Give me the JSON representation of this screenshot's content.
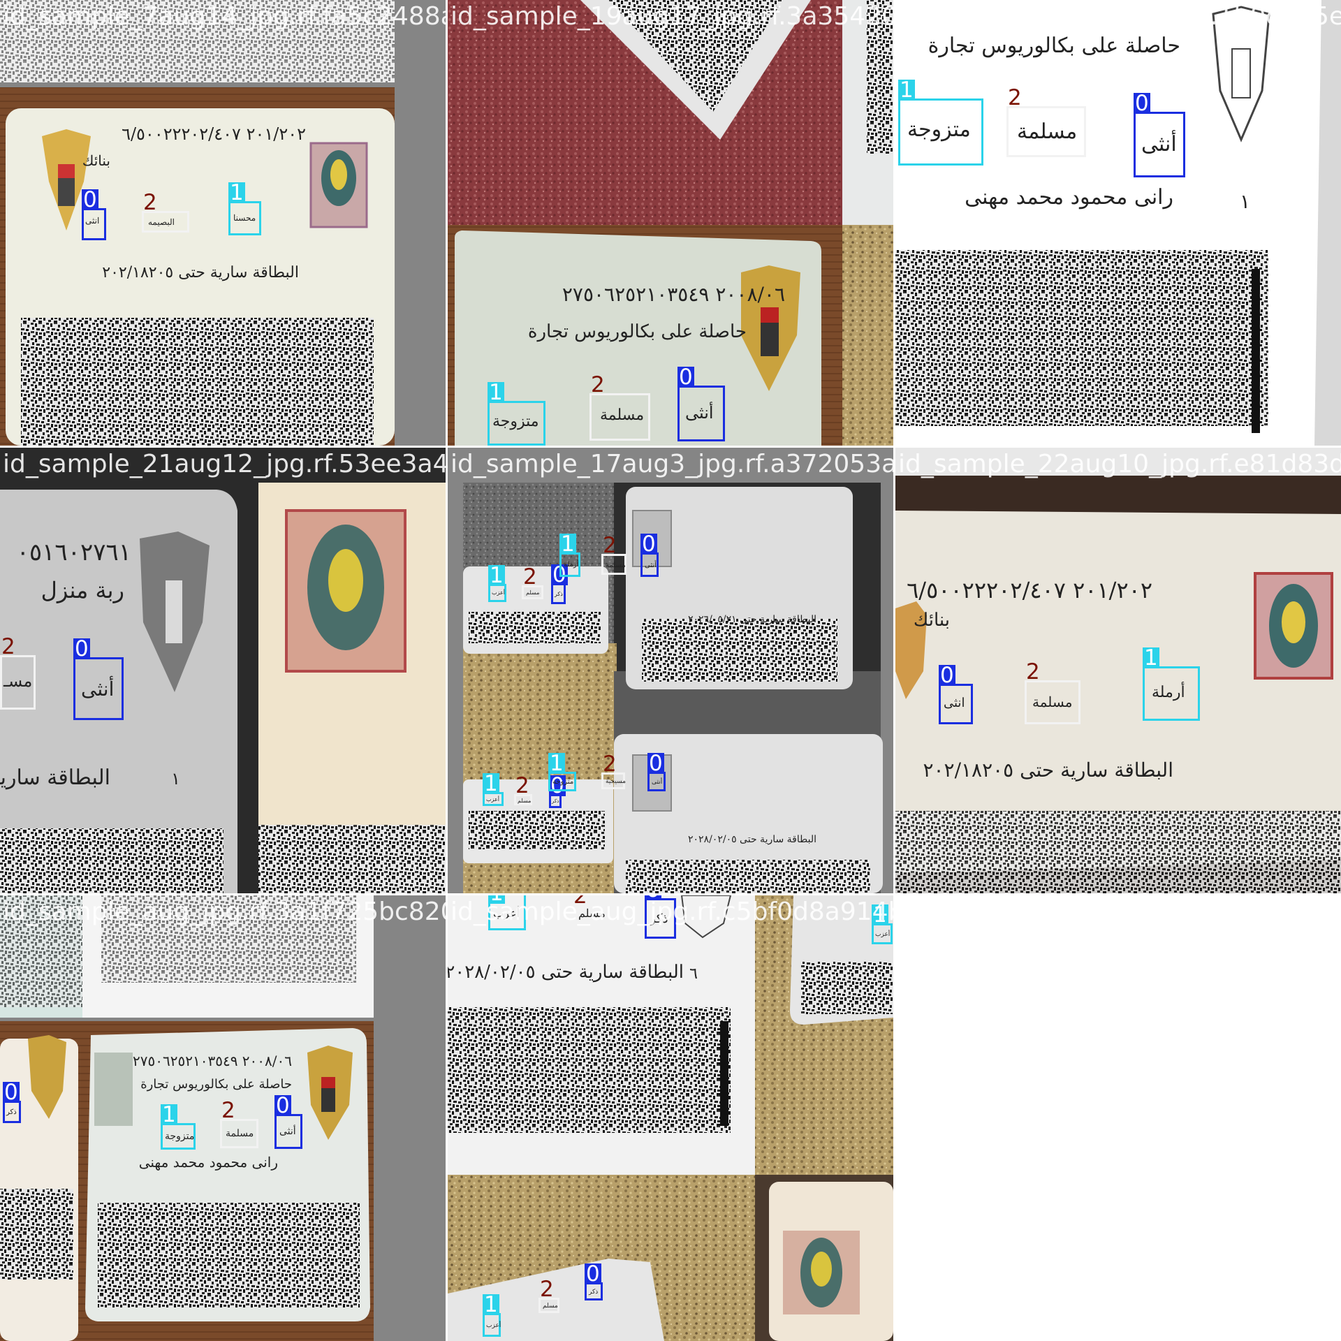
{
  "mosaic": {
    "tiles": [
      {
        "filename": "id_sample_7aug14_jpg.rf.fa5c2488a1774ef45a",
        "card_texts": [
          {
            "text": "٢٠١/٢٠٢  ٦/٥٠٠٢٢٢٠٢/٤٠٧"
          },
          {
            "text": "بنائك"
          },
          {
            "text": "البطاقة سارية حتى ٢٠٢/١٨٢٠٥"
          }
        ],
        "detections": [
          {
            "class_id": "0",
            "text": "انثى"
          },
          {
            "class_id": "2",
            "text": "البصيمه"
          },
          {
            "class_id": "1",
            "text": "محسنا"
          }
        ]
      },
      {
        "filename": "id_sample_19aug17_jpg.rf.3a354201e0e347",
        "card_texts": [
          {
            "text": "٢٠٠٨/٠٦   ٢٧٥٠٦٢٥٢١٠٣٥٤٩"
          },
          {
            "text": "حاصلة على بكالوريوس تجارة"
          }
        ],
        "detections": [
          {
            "class_id": "1",
            "text": "متزوجة"
          },
          {
            "class_id": "2",
            "text": "مسلمة"
          },
          {
            "class_id": "0",
            "text": "أنثى"
          }
        ]
      },
      {
        "filename": "id_sample_13aug6_jpg.rf.1b0d4a5e51",
        "card_texts": [
          {
            "text": "حاصلة على بكالوريوس تجارة"
          },
          {
            "text": "رانى محمود محمد مهنى"
          },
          {
            "text": "١"
          }
        ],
        "detections": [
          {
            "class_id": "1",
            "text": "متزوجة"
          },
          {
            "class_id": "2",
            "text": "مسلمة"
          },
          {
            "class_id": "0",
            "text": "أنثى"
          }
        ]
      },
      {
        "filename": "id_sample_21aug12_jpg.rf.53ee3a4054a3a7a",
        "card_texts": [
          {
            "text": "٠٥١٦٠٢٧٦١"
          },
          {
            "text": "ربة منزل"
          },
          {
            "text": "البطاقة سارية"
          },
          {
            "text": "١"
          }
        ],
        "detections": [
          {
            "class_id": "2",
            "text": "مسـ"
          },
          {
            "class_id": "0",
            "text": "أنثى"
          }
        ]
      },
      {
        "filename": "id_sample_17aug3_jpg.rf.a372053a2dd3a",
        "card_texts": [
          {
            "text": "البطاقة سارية حتى ٢٠٢٦/٠٥/٢١"
          },
          {
            "text": "البطاقة سارية حتى ٢٠٢٨/٠٢/٠٥"
          }
        ],
        "detections": [
          {
            "class_id": "1",
            "text": "أعزب"
          },
          {
            "class_id": "2",
            "text": "مسلم"
          },
          {
            "class_id": "0",
            "text": "ذكر"
          },
          {
            "class_id": "1",
            "text": "أرملة"
          },
          {
            "class_id": "2",
            "text": "مسلمة"
          },
          {
            "class_id": "0",
            "text": "أنثى"
          },
          {
            "class_id": "1",
            "text": "أعزب"
          },
          {
            "class_id": "2",
            "text": "مسلم"
          },
          {
            "class_id": "0",
            "text": "ذكر"
          },
          {
            "class_id": "1",
            "text": "متزوجة"
          },
          {
            "class_id": "2",
            "text": "مسيحية"
          },
          {
            "class_id": "0",
            "text": "أنثى"
          }
        ]
      },
      {
        "filename": "id_sample_22aug10_jpg.rf.e81d83d06",
        "card_texts": [
          {
            "text": "٢٠١/٢٠٢  ٦/٥٠٠٢٢٢٠٢/٤٠٧"
          },
          {
            "text": "بنائك"
          },
          {
            "text": "البطاقة سارية حتى ٢٠٢/١٨٢٠٥"
          }
        ],
        "detections": [
          {
            "class_id": "0",
            "text": "انثى"
          },
          {
            "class_id": "2",
            "text": "مسلمة"
          },
          {
            "class_id": "1",
            "text": "أرملة"
          }
        ]
      },
      {
        "filename": "id_sample_aug_jpg.rf.3a1f725bc820",
        "card_texts": [
          {
            "text": "٢٠٠٨/٠٦   ٢٧٥٠٦٢٥٢١٠٣٥٤٩"
          },
          {
            "text": "حاصلة على بكالوريوس تجارة"
          },
          {
            "text": "رانى محمود محمد مهنى"
          }
        ],
        "detections": [
          {
            "class_id": "0",
            "text": "ذكر"
          },
          {
            "class_id": "1",
            "text": "متزوجة"
          },
          {
            "class_id": "2",
            "text": "مسلمة"
          },
          {
            "class_id": "0",
            "text": "أنثى"
          }
        ]
      },
      {
        "filename": "id_sample_aug_jpg.rf.c5bf0d8a914bcd58",
        "card_texts": [
          {
            "text": "البطاقة سارية حتى ٢٠٢٨/٠٢/٠٥"
          },
          {
            "text": "٦"
          }
        ],
        "detections": [
          {
            "class_id": "1",
            "text": "أعزب"
          },
          {
            "class_id": "2",
            "text": "مسلم"
          },
          {
            "class_id": "0",
            "text": "ذكر"
          },
          {
            "class_id": "1",
            "text": "أعزب"
          },
          {
            "class_id": "1",
            "text": "أعزب"
          },
          {
            "class_id": "2",
            "text": "مسلم"
          },
          {
            "class_id": "0",
            "text": "ذكر"
          }
        ]
      }
    ]
  },
  "legend": {
    "class_colors": {
      "0": "#1a2ee0",
      "1": "#2bd3ea",
      "2": "#f2f2f2"
    }
  }
}
